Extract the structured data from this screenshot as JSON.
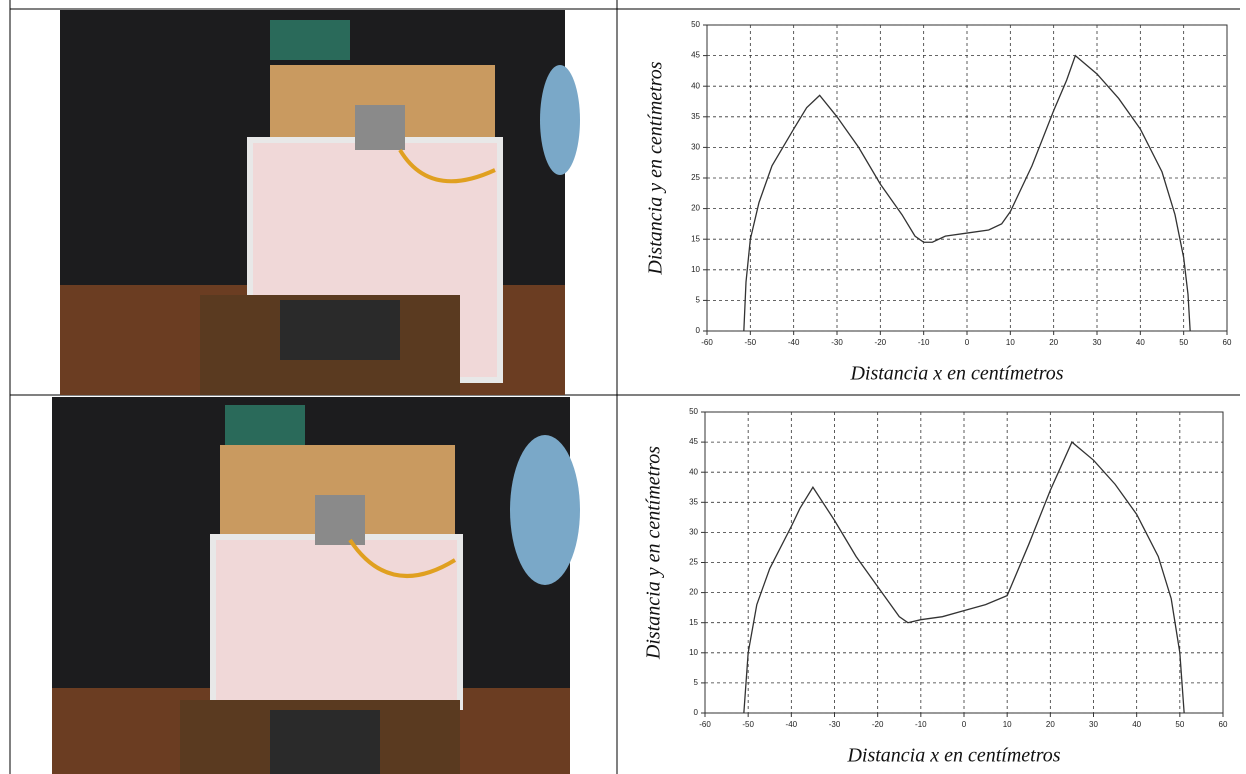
{
  "chart_data": [
    {
      "type": "line",
      "color": "#333333",
      "x": [
        -51.5,
        -51,
        -50,
        -48,
        -45,
        -40,
        -37,
        -34,
        -30,
        -25,
        -20,
        -15,
        -12,
        -10,
        -8,
        -5,
        0,
        5,
        8,
        10,
        15,
        20,
        23,
        25,
        30,
        35,
        40,
        45,
        48,
        50,
        51,
        51.5
      ],
      "values": [
        0,
        8,
        15,
        21,
        27,
        33,
        36.5,
        38.5,
        35,
        30,
        24,
        19,
        15.5,
        14.5,
        14.5,
        15.5,
        16,
        16.5,
        17.5,
        19.5,
        27,
        36,
        41,
        45,
        42,
        38,
        33,
        26,
        19,
        12,
        6,
        0
      ],
      "xlabel": "Distancia x en centímetros",
      "ylabel": "Distancia y en centímetros",
      "xlim": [
        -60,
        60
      ],
      "ylim": [
        0,
        50
      ],
      "xticks": [
        -60,
        -50,
        -40,
        -30,
        -20,
        -10,
        0,
        10,
        20,
        30,
        40,
        50,
        60
      ],
      "yticks": [
        0,
        5,
        10,
        15,
        20,
        25,
        30,
        35,
        40,
        45,
        50
      ],
      "grid": true
    },
    {
      "type": "line",
      "color": "#333333",
      "x": [
        -51,
        -50,
        -48,
        -45,
        -40,
        -38,
        -35,
        -30,
        -25,
        -20,
        -15,
        -13,
        -10,
        -5,
        0,
        5,
        10,
        15,
        20,
        25,
        30,
        35,
        40,
        45,
        48,
        50,
        51
      ],
      "values": [
        0,
        10,
        18,
        24,
        31,
        34,
        37.5,
        32,
        26,
        21,
        16,
        15,
        15.5,
        16,
        17,
        18,
        19.5,
        28,
        37,
        45,
        42,
        38,
        33,
        26,
        19,
        10,
        0
      ],
      "xlabel": "Distancia x en centímetros",
      "ylabel": "Distancia y en centímetros",
      "xlim": [
        -60,
        60
      ],
      "ylim": [
        0,
        50
      ],
      "xticks": [
        -60,
        -50,
        -40,
        -30,
        -20,
        -10,
        0,
        10,
        20,
        30,
        40,
        50,
        60
      ],
      "yticks": [
        0,
        5,
        10,
        15,
        20,
        25,
        30,
        35,
        40,
        45,
        50
      ],
      "grid": true
    }
  ]
}
